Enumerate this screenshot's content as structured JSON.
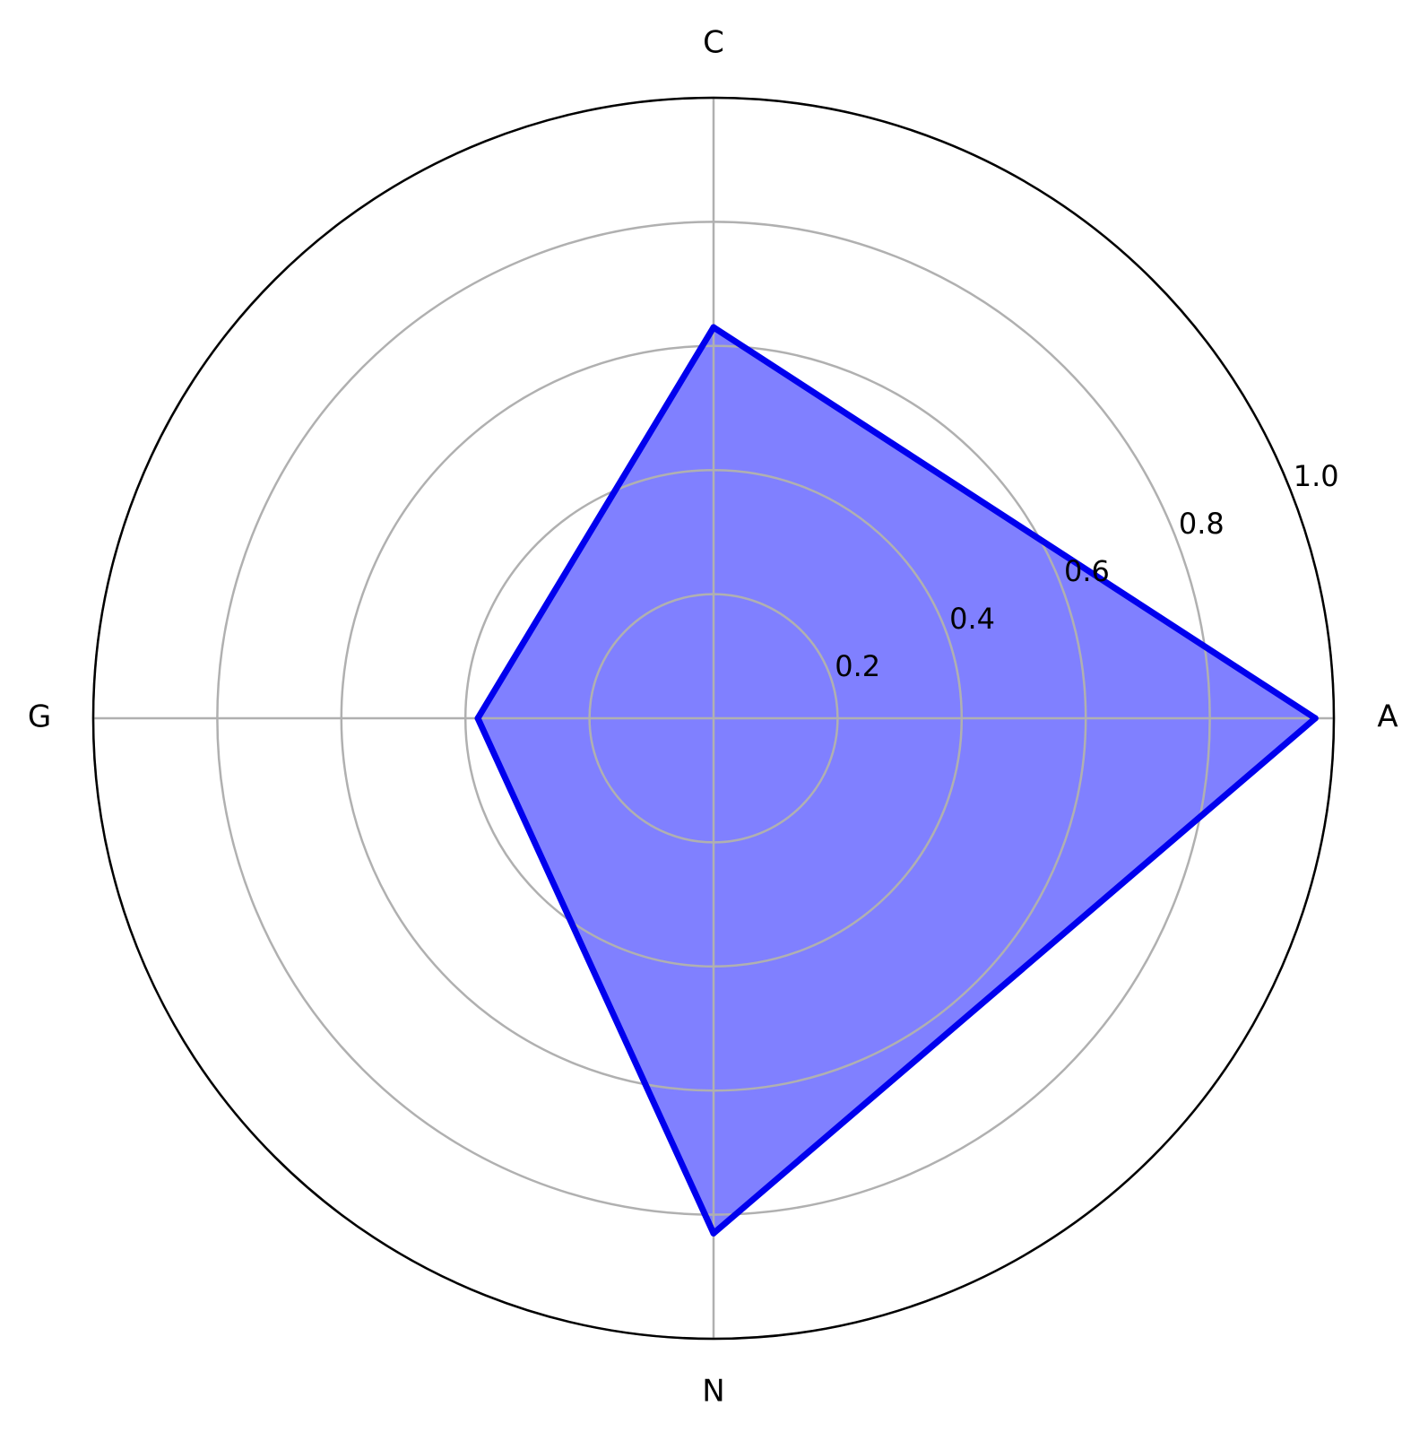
{
  "chart_data": {
    "type": "radar",
    "categories": [
      "A",
      "C",
      "G",
      "N"
    ],
    "series": [
      {
        "values": [
          0.97,
          0.63,
          0.38,
          0.83
        ]
      }
    ],
    "rlim": [
      0,
      1.0
    ],
    "r_ticks": [
      0.2,
      0.4,
      0.6,
      0.8,
      1.0
    ],
    "r_tick_labels": [
      "0.2",
      "0.4",
      "0.6",
      "0.8",
      "1.0"
    ],
    "grid": true,
    "colors": {
      "line": "#0000ee",
      "fill": "#8080ff",
      "grid": "#b0b0b0",
      "spine": "#000000"
    }
  }
}
